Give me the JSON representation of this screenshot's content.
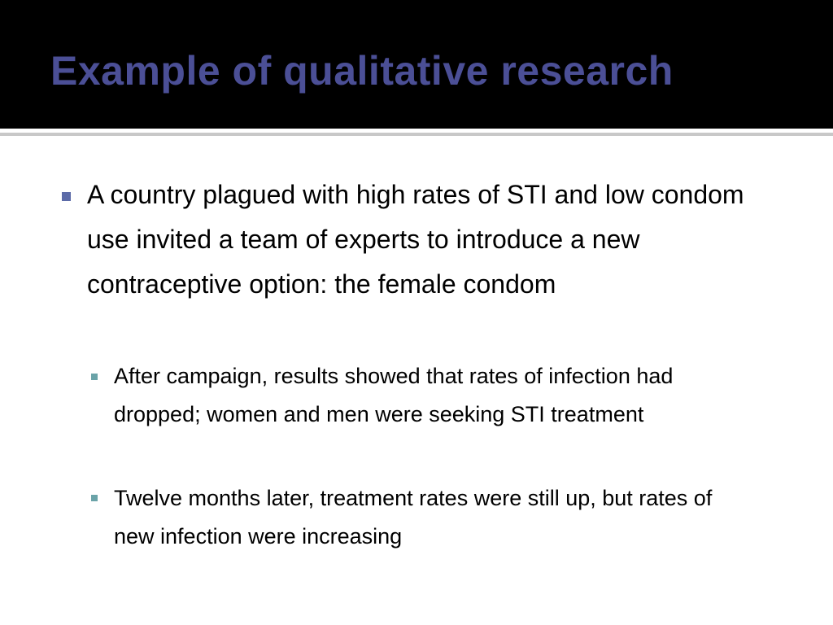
{
  "title": "Example of qualitative research",
  "bullets": [
    {
      "text": "A country plagued with high rates of STI and low condom use invited a team of experts to introduce a new contraceptive option: the female condom",
      "sub_bullets": [
        "After campaign, results showed that rates of infection had dropped; women and men were seeking STI treatment",
        "Twelve months later, treatment rates were still up, but rates of new infection were increasing"
      ]
    }
  ]
}
